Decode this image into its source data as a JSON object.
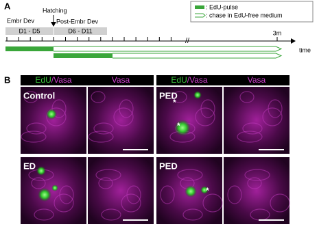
{
  "panel_a": {
    "label": "A",
    "embr_dev": "Embr Dev",
    "hatching": "Hatching",
    "post_embr_dev": "Post-Embr Dev",
    "period_1": "D1 - D5",
    "period_2": "D6 - D11",
    "end_time": "3m",
    "axis_label": "time",
    "legend": {
      "pulse": ": EdU-pulse",
      "chase": ": chase in EdU-free medium"
    }
  },
  "panel_b": {
    "label": "B",
    "header_merge_edu": "EdU",
    "header_merge_vasa": "/Vasa",
    "header_vasa": "Vasa",
    "conditions": [
      "Control",
      "ED",
      "PED",
      "PED"
    ],
    "marker": "*"
  }
}
